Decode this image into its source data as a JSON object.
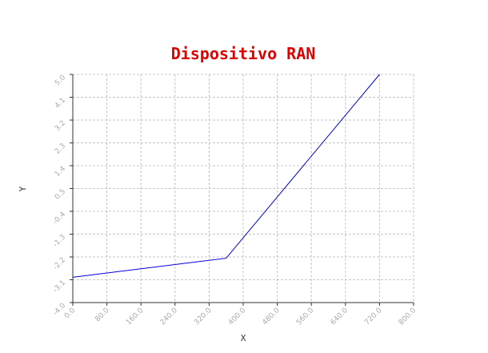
{
  "chart_data": {
    "type": "line",
    "title": "Dispositivo RAN",
    "xlabel": "X",
    "ylabel": "Y",
    "xlim": [
      0.0,
      800.0
    ],
    "ylim": [
      -4.0,
      5.0
    ],
    "x_ticks": [
      "0.0",
      "80.0",
      "160.0",
      "240.0",
      "320.0",
      "400.0",
      "480.0",
      "560.0",
      "640.0",
      "720.0",
      "800.0"
    ],
    "y_ticks": [
      "-4.0",
      "-3.1",
      "-2.2",
      "-1.3",
      "-0.4",
      "0.5",
      "1.4",
      "2.3",
      "3.2",
      "4.1",
      "5.0"
    ],
    "grid": true,
    "series": [
      {
        "color": "#0000dd",
        "x": [
          0,
          360,
          720
        ],
        "y": [
          -3.0,
          -2.25,
          5.0
        ]
      }
    ]
  }
}
